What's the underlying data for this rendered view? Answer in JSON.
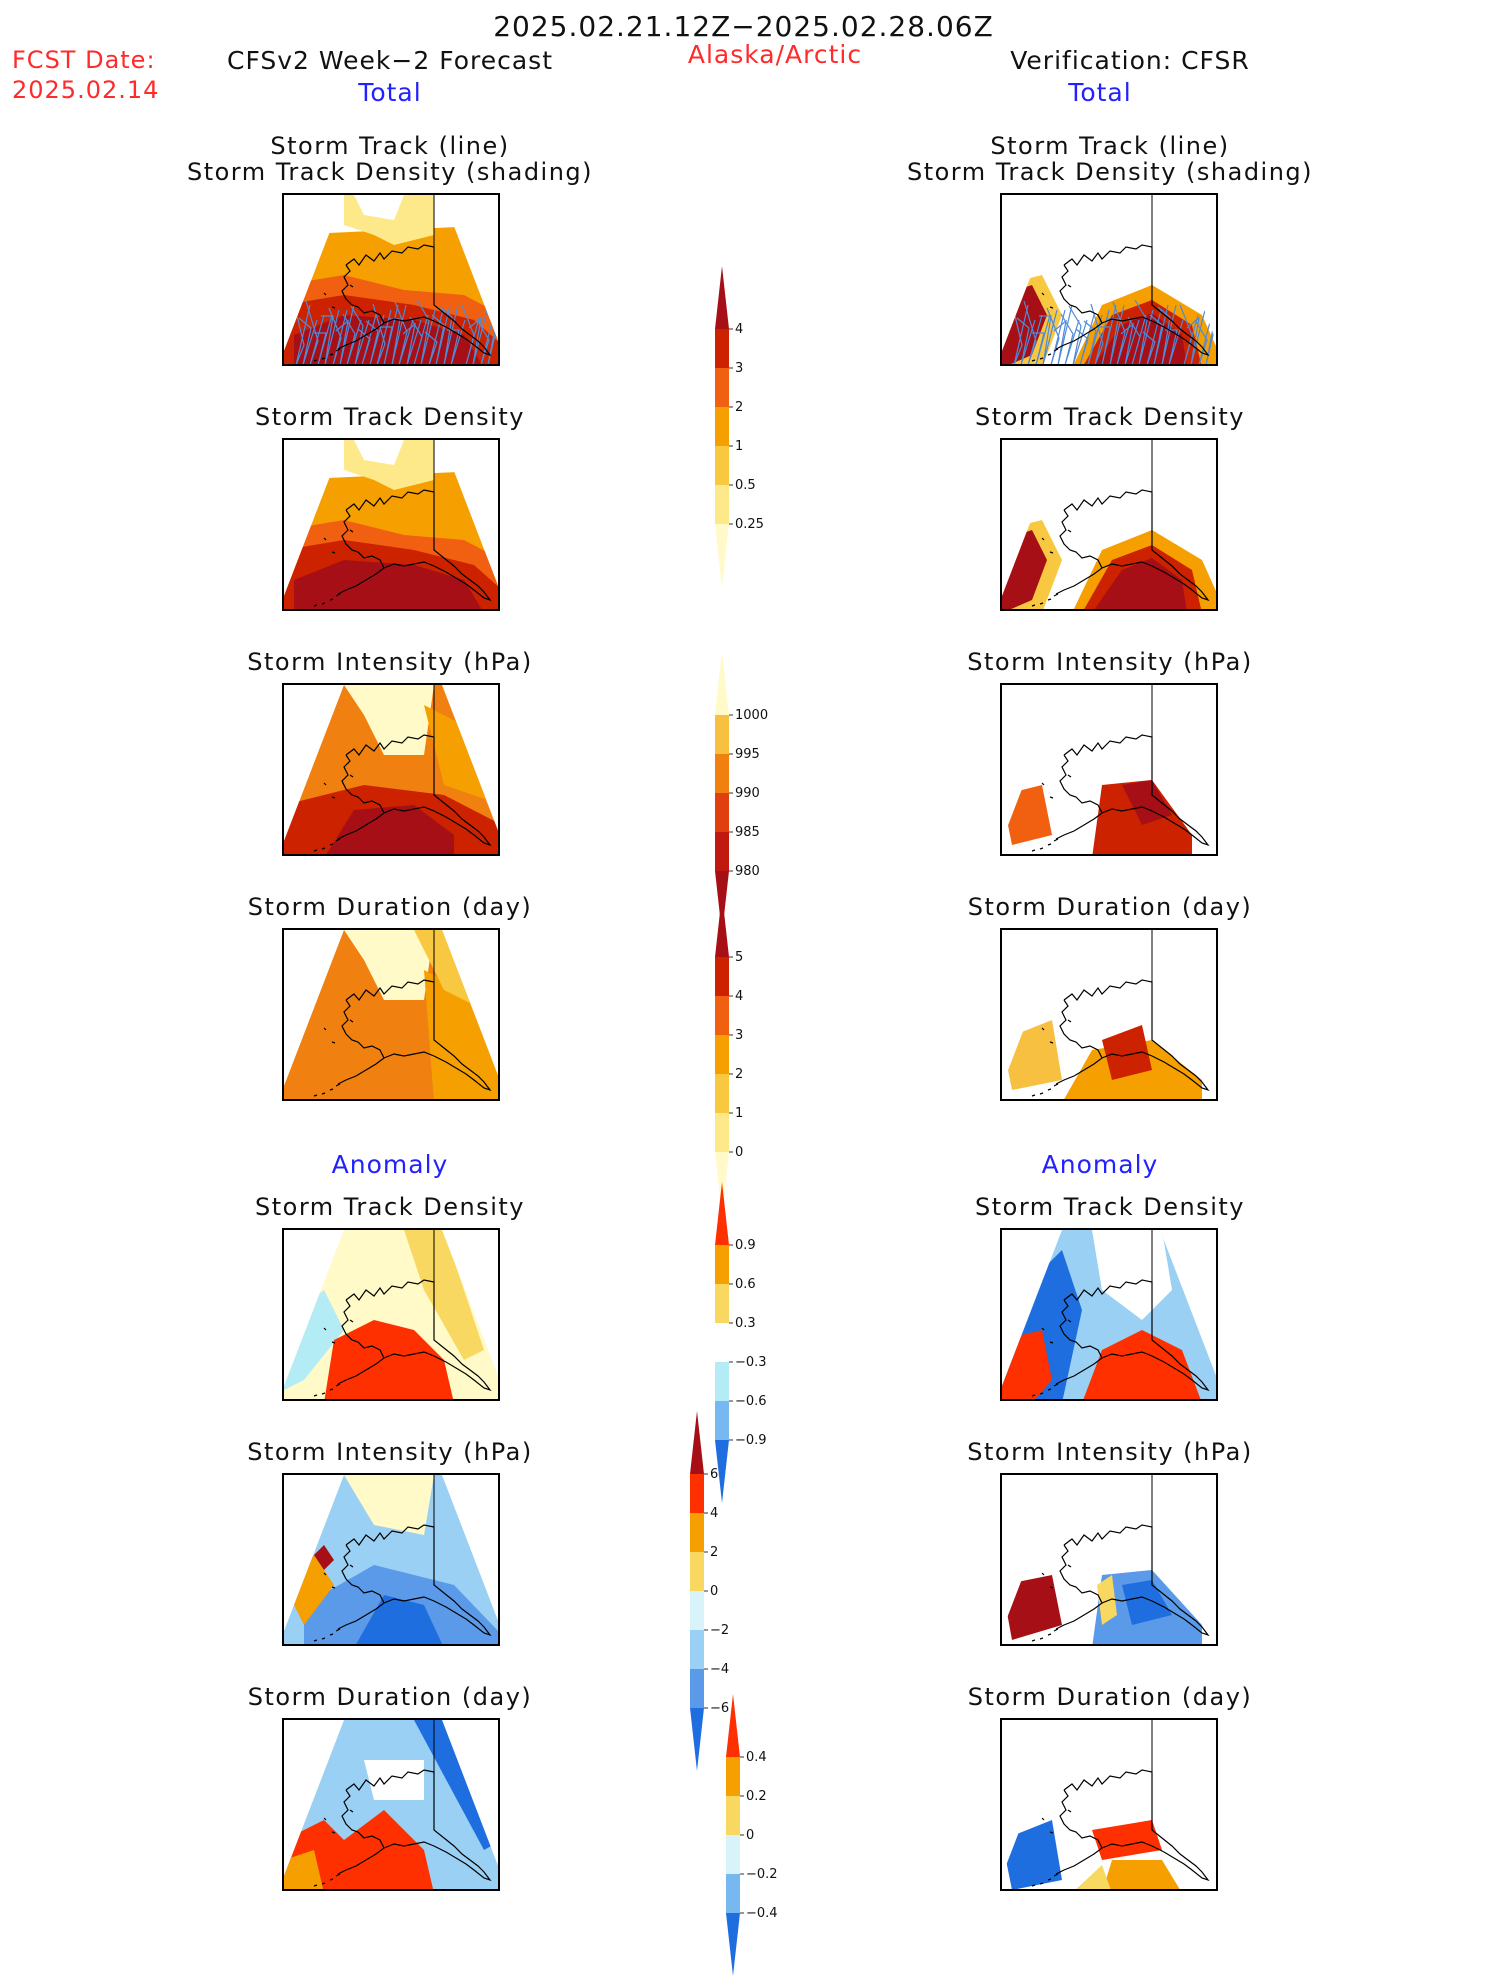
{
  "header": {
    "date_range": "2025.02.21.12Z−2025.02.28.06Z",
    "region": "Alaska/Arctic",
    "fcst_label": "FCST Date:",
    "fcst_date": "2025.02.14",
    "left_title": "CFSv2 Week−2 Forecast",
    "right_title": "Verification: CFSR"
  },
  "sections": {
    "total": "Total",
    "anomaly": "Anomaly"
  },
  "panel_titles": {
    "track_line_1": "Storm Track (line)",
    "track_line_2": "Storm Track Density (shading)",
    "density": "Storm Track Density",
    "intensity": "Storm Intensity (hPa)",
    "duration": "Storm Duration (day)"
  },
  "colorbars": {
    "density": {
      "labels": [
        "4",
        "3",
        "2",
        "1",
        "0.5",
        "0.25"
      ],
      "colors": [
        "#a50f15",
        "#cc2200",
        "#f06010",
        "#f5a000",
        "#f8c840",
        "#fde98a",
        "#fffac8"
      ]
    },
    "intensity": {
      "labels": [
        "1000",
        "995",
        "990",
        "985",
        "980"
      ],
      "colors": [
        "#fffac8",
        "#f8c040",
        "#f08010",
        "#e04010",
        "#c01a10",
        "#a50f15"
      ]
    },
    "duration": {
      "labels": [
        "5",
        "4",
        "3",
        "2",
        "1",
        "0"
      ],
      "colors": [
        "#a50f15",
        "#cc2200",
        "#f06010",
        "#f5a000",
        "#f8c840",
        "#fde98a",
        "#fffac8"
      ]
    },
    "density_anom": {
      "labels": [
        "0.9",
        "0.6",
        "0.3",
        "−0.3",
        "−0.6",
        "−0.9"
      ],
      "colors": [
        "#ff3000",
        "#f5a000",
        "#f8d860",
        "#ffffff",
        "#b4ecf6",
        "#78b8f0",
        "#1e6ee0"
      ]
    },
    "intensity_anom": {
      "labels": [
        "6",
        "4",
        "2",
        "0",
        "−2",
        "−4",
        "−6"
      ],
      "colors": [
        "#a50f15",
        "#ff3000",
        "#f5a000",
        "#f8d860",
        "#d8f4fa",
        "#9ad0f4",
        "#5a9ae8",
        "#1e6ee0"
      ]
    },
    "duration_anom": {
      "labels": [
        "0.4",
        "0.2",
        "0",
        "−0.2",
        "−0.4"
      ],
      "colors": [
        "#ff3000",
        "#f5a000",
        "#f8d860",
        "#d8f4fa",
        "#78b8f0",
        "#1e6ee0"
      ]
    }
  }
}
